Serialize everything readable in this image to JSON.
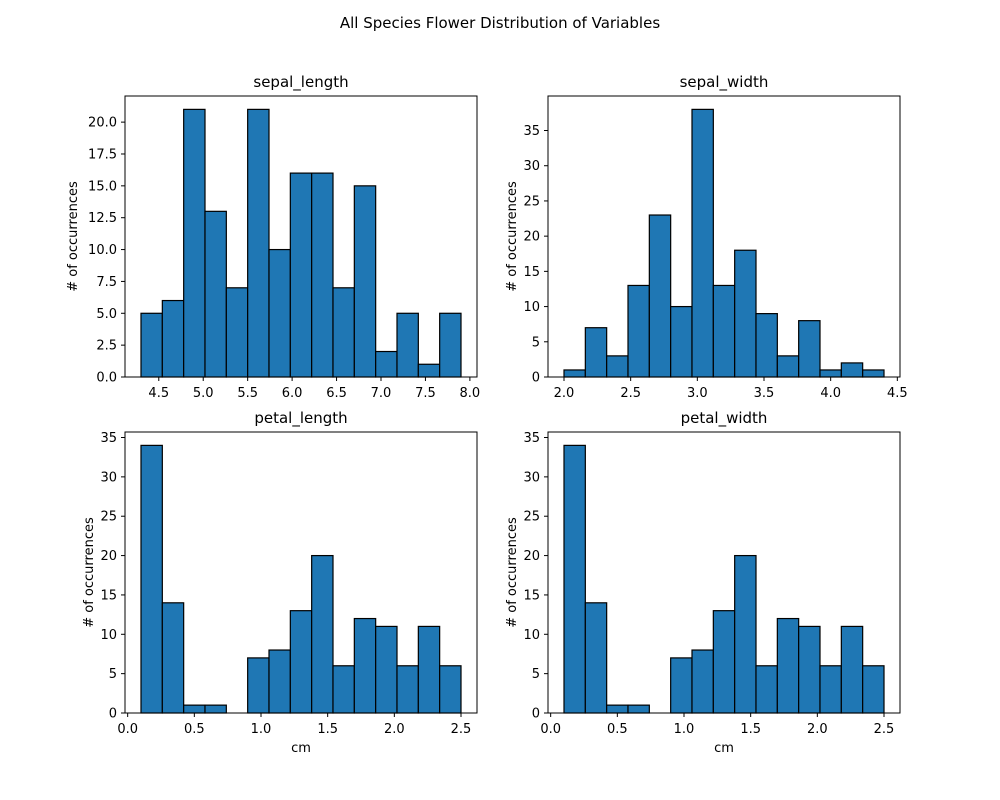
{
  "figure": {
    "suptitle": "All Species Flower Distribution of Variables",
    "bar_color": "#1f77b4",
    "edge_color": "#000000"
  },
  "chart_data": [
    {
      "type": "bar",
      "title": "sepal_length",
      "xlabel": "",
      "ylabel": "# of occurrences",
      "bin_start": 4.3,
      "bin_width": 0.24,
      "values": [
        5,
        6,
        21,
        13,
        7,
        21,
        10,
        16,
        16,
        7,
        15,
        2,
        5,
        1,
        5
      ],
      "xlim": [
        4.12,
        8.08
      ],
      "ylim": [
        0,
        22.05
      ],
      "xticks": [
        4.5,
        5.0,
        5.5,
        6.0,
        6.5,
        7.0,
        7.5,
        8.0
      ],
      "xtick_labels": [
        "4.5",
        "5.0",
        "5.5",
        "6.0",
        "6.5",
        "7.0",
        "7.5",
        "8.0"
      ],
      "yticks": [
        0,
        2.5,
        5,
        7.5,
        10,
        12.5,
        15,
        17.5,
        20
      ],
      "ytick_labels": [
        "0.0",
        "2.5",
        "5.0",
        "7.5",
        "10.0",
        "12.5",
        "15.0",
        "17.5",
        "20.0"
      ],
      "grid": false
    },
    {
      "type": "bar",
      "title": "sepal_width",
      "xlabel": "",
      "ylabel": "# of occurrences",
      "bin_start": 2.0,
      "bin_width": 0.16,
      "values": [
        1,
        7,
        3,
        13,
        23,
        10,
        38,
        13,
        18,
        9,
        3,
        8,
        1,
        2,
        1
      ],
      "xlim": [
        1.88,
        4.52
      ],
      "ylim": [
        0,
        39.9
      ],
      "xticks": [
        2.0,
        2.5,
        3.0,
        3.5,
        4.0,
        4.5
      ],
      "xtick_labels": [
        "2.0",
        "2.5",
        "3.0",
        "3.5",
        "4.0",
        "4.5"
      ],
      "yticks": [
        0,
        5,
        10,
        15,
        20,
        25,
        30,
        35
      ],
      "ytick_labels": [
        "0",
        "5",
        "10",
        "15",
        "20",
        "25",
        "30",
        "35"
      ],
      "grid": false
    },
    {
      "type": "bar",
      "title": "petal_length",
      "xlabel": "cm",
      "ylabel": "# of occurrences",
      "bin_start": 0.1,
      "bin_width": 0.16,
      "values": [
        34,
        14,
        1,
        1,
        0,
        7,
        8,
        13,
        20,
        6,
        12,
        11,
        6,
        11,
        6
      ],
      "xlim": [
        -0.02,
        2.62
      ],
      "ylim": [
        0,
        35.7
      ],
      "xticks": [
        0.0,
        0.5,
        1.0,
        1.5,
        2.0,
        2.5
      ],
      "xtick_labels": [
        "0.0",
        "0.5",
        "1.0",
        "1.5",
        "2.0",
        "2.5"
      ],
      "yticks": [
        0,
        5,
        10,
        15,
        20,
        25,
        30,
        35
      ],
      "ytick_labels": [
        "0",
        "5",
        "10",
        "15",
        "20",
        "25",
        "30",
        "35"
      ],
      "grid": false
    },
    {
      "type": "bar",
      "title": "petal_width",
      "xlabel": "cm",
      "ylabel": "# of occurrences",
      "bin_start": 0.1,
      "bin_width": 0.16,
      "values": [
        34,
        14,
        1,
        1,
        0,
        7,
        8,
        13,
        20,
        6,
        12,
        11,
        6,
        11,
        6
      ],
      "xlim": [
        -0.02,
        2.62
      ],
      "ylim": [
        0,
        35.7
      ],
      "xticks": [
        0.0,
        0.5,
        1.0,
        1.5,
        2.0,
        2.5
      ],
      "xtick_labels": [
        "0.0",
        "0.5",
        "1.0",
        "1.5",
        "2.0",
        "2.5"
      ],
      "yticks": [
        0,
        5,
        10,
        15,
        20,
        25,
        30,
        35
      ],
      "ytick_labels": [
        "0",
        "5",
        "10",
        "15",
        "20",
        "25",
        "30",
        "35"
      ],
      "grid": false
    }
  ]
}
